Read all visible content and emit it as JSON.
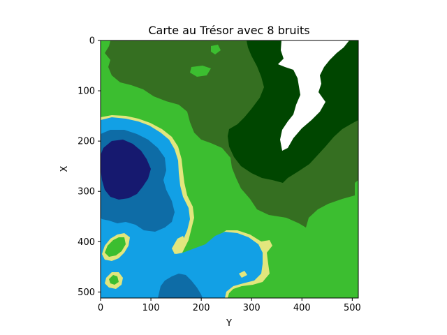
{
  "chart_data": {
    "type": "heatmap",
    "title": "Carte au Trésor avec 8 bruits",
    "xlabel": "Y",
    "ylabel": "X",
    "xlim": [
      0,
      512
    ],
    "ylim": [
      0,
      512
    ],
    "y_inverted": true,
    "x_ticks": [
      "0",
      "100",
      "200",
      "300",
      "400",
      "500"
    ],
    "y_ticks": [
      "0",
      "100",
      "200",
      "300",
      "400",
      "500"
    ],
    "legend": "none",
    "grid": false,
    "colors": {
      "deep_water": "#16196f",
      "mid_water": "#0e6ca6",
      "shallow_water": "#12a0e5",
      "sand": "#e2e67d",
      "grass": "#3cbe30",
      "forest": "#356f21",
      "dark_forest": "#004600",
      "snow": "#ffffff"
    }
  }
}
